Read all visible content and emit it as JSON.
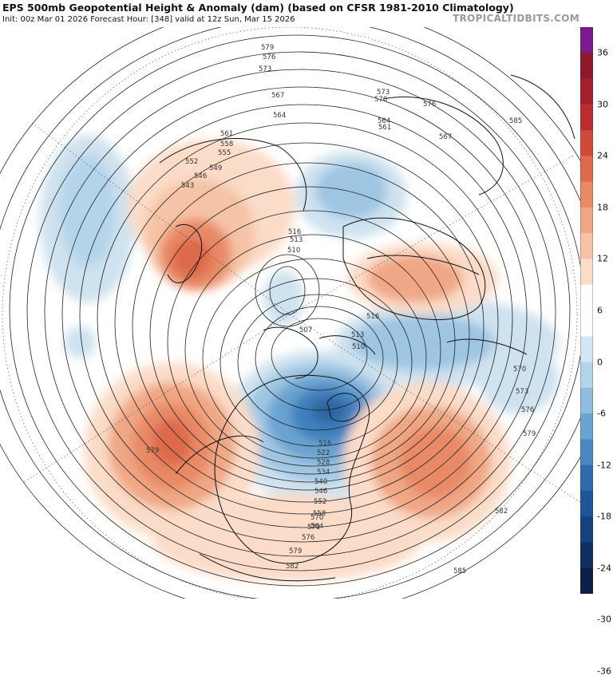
{
  "header": {
    "title": "EPS 500mb Geopotential Height & Anomaly (dam) (based on CFSR 1981-2010 Climatology)",
    "subtitle": "Init: 00z Mar 01 2026   Forecast Hour: [348]   valid at 12z Sun, Mar 15 2026",
    "credit": "TROPICALTIDBITS.COM"
  },
  "colorbar": {
    "labels": [
      "36",
      "30",
      "24",
      "18",
      "12",
      "6",
      "0",
      "-6",
      "-12",
      "-18",
      "-24",
      "-30",
      "-36"
    ],
    "bins": [
      "#7a1a8c",
      "#8b1a2a",
      "#a51f2e",
      "#bc2c31",
      "#cf4a3a",
      "#dd6a4c",
      "#e88a66",
      "#f0a785",
      "#f6c3a6",
      "#fbdcc8",
      "#ffffff",
      "#ffffff",
      "#d4e6f1",
      "#b4d4ea",
      "#8fbcdf",
      "#6ba4d2",
      "#4a88c2",
      "#2f6cae",
      "#1f5596",
      "#17417c",
      "#122f62",
      "#0c1f46"
    ]
  },
  "map": {
    "projection": "north polar stereographic",
    "anomalies": [
      {
        "sign": "negative",
        "region": "Hudson Bay / central Canada",
        "peak_dam": -24
      },
      {
        "sign": "negative",
        "region": "Siberia / Kara Sea",
        "peak_dam": -12
      },
      {
        "sign": "negative",
        "region": "Barents Sea / Scandinavia",
        "peak_dam": -12
      },
      {
        "sign": "negative",
        "region": "North Pacific (Japan east)",
        "peak_dam": -12
      },
      {
        "sign": "positive",
        "region": "East Asia / China",
        "peak_dam": 18
      },
      {
        "sign": "positive",
        "region": "Gulf of Alaska / West Coast",
        "peak_dam": 18
      },
      {
        "sign": "positive",
        "region": "North Atlantic",
        "peak_dam": 18
      },
      {
        "sign": "positive",
        "region": "Europe / Ural",
        "peak_dam": 12
      }
    ],
    "contour_labels": [
      {
        "text": "579"
      },
      {
        "text": "576"
      },
      {
        "text": "573"
      },
      {
        "text": "567"
      },
      {
        "text": "564"
      },
      {
        "text": "561"
      },
      {
        "text": "558"
      },
      {
        "text": "555"
      },
      {
        "text": "552"
      },
      {
        "text": "549"
      },
      {
        "text": "546"
      },
      {
        "text": "543"
      },
      {
        "text": "573"
      },
      {
        "text": "570"
      },
      {
        "text": "576"
      },
      {
        "text": "564"
      },
      {
        "text": "561"
      },
      {
        "text": "567"
      },
      {
        "text": "585"
      },
      {
        "text": "516"
      },
      {
        "text": "513"
      },
      {
        "text": "510"
      },
      {
        "text": "507"
      },
      {
        "text": "516"
      },
      {
        "text": "513"
      },
      {
        "text": "510"
      },
      {
        "text": "570"
      },
      {
        "text": "573"
      },
      {
        "text": "576"
      },
      {
        "text": "579"
      },
      {
        "text": "582"
      },
      {
        "text": "579"
      },
      {
        "text": "516"
      },
      {
        "text": "522"
      },
      {
        "text": "528"
      },
      {
        "text": "534"
      },
      {
        "text": "540"
      },
      {
        "text": "546"
      },
      {
        "text": "552"
      },
      {
        "text": "558"
      },
      {
        "text": "564"
      },
      {
        "text": "570"
      },
      {
        "text": "573"
      },
      {
        "text": "576"
      },
      {
        "text": "579"
      },
      {
        "text": "582"
      },
      {
        "text": "585"
      }
    ]
  }
}
